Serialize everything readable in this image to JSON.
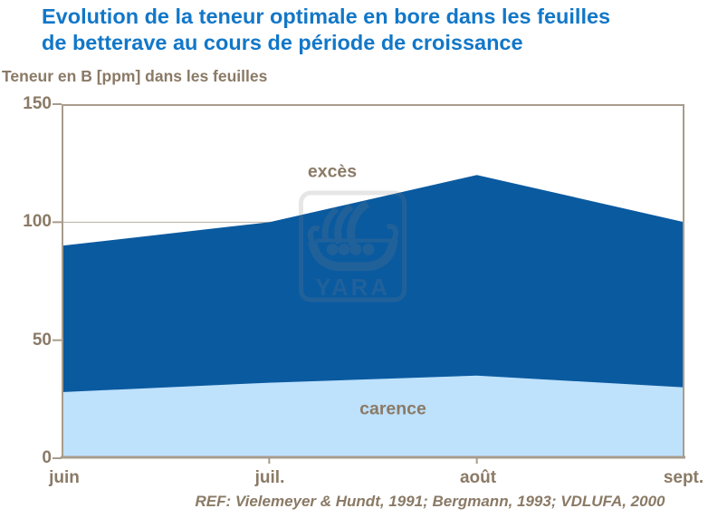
{
  "header": {
    "title_line_1": "Evolution de la teneur optimale en bore dans les feuilles",
    "title_line_2": "de betterave au cours de période de croissance"
  },
  "watermark": {
    "text": "YARA"
  },
  "colors": {
    "title_blue": "#1277C8",
    "text_brown": "#8A7A66",
    "axis": "#A89C8C",
    "gridline": "#B9AE9F",
    "area_dark_blue": "#0A5AA0",
    "area_light_blue": "#BEE1FC",
    "background": "#FFFFFF"
  },
  "chart_data": {
    "type": "area",
    "title": "Evolution de la teneur optimale en bore dans les feuilles de betterave au cours de période de croissance",
    "y_axis_title": "Teneur en B [ppm] dans les feuilles",
    "x": [
      "juin",
      "juil.",
      "août",
      "sept."
    ],
    "ylim": [
      0,
      150
    ],
    "y_ticks": [
      0,
      50,
      100,
      150
    ],
    "y_tick_labels_top_down": [
      "150",
      "100",
      "50",
      "0"
    ],
    "gridlines_y": [
      50,
      100
    ],
    "grid": "horizontal only, at 50 and 100, drawn behind areas",
    "legend_position": "none",
    "series": [
      {
        "zone_label": "excès",
        "values": [
          90,
          100,
          120,
          100
        ],
        "fill": "#0A5AA0"
      },
      {
        "zone_label": "carence",
        "values": [
          28,
          32,
          35,
          30
        ],
        "fill": "#BEE1FC"
      }
    ],
    "reference": "REF: Vielemeyer & Hundt, 1991; Bergmann, 1993; VDLUFA, 2000"
  }
}
